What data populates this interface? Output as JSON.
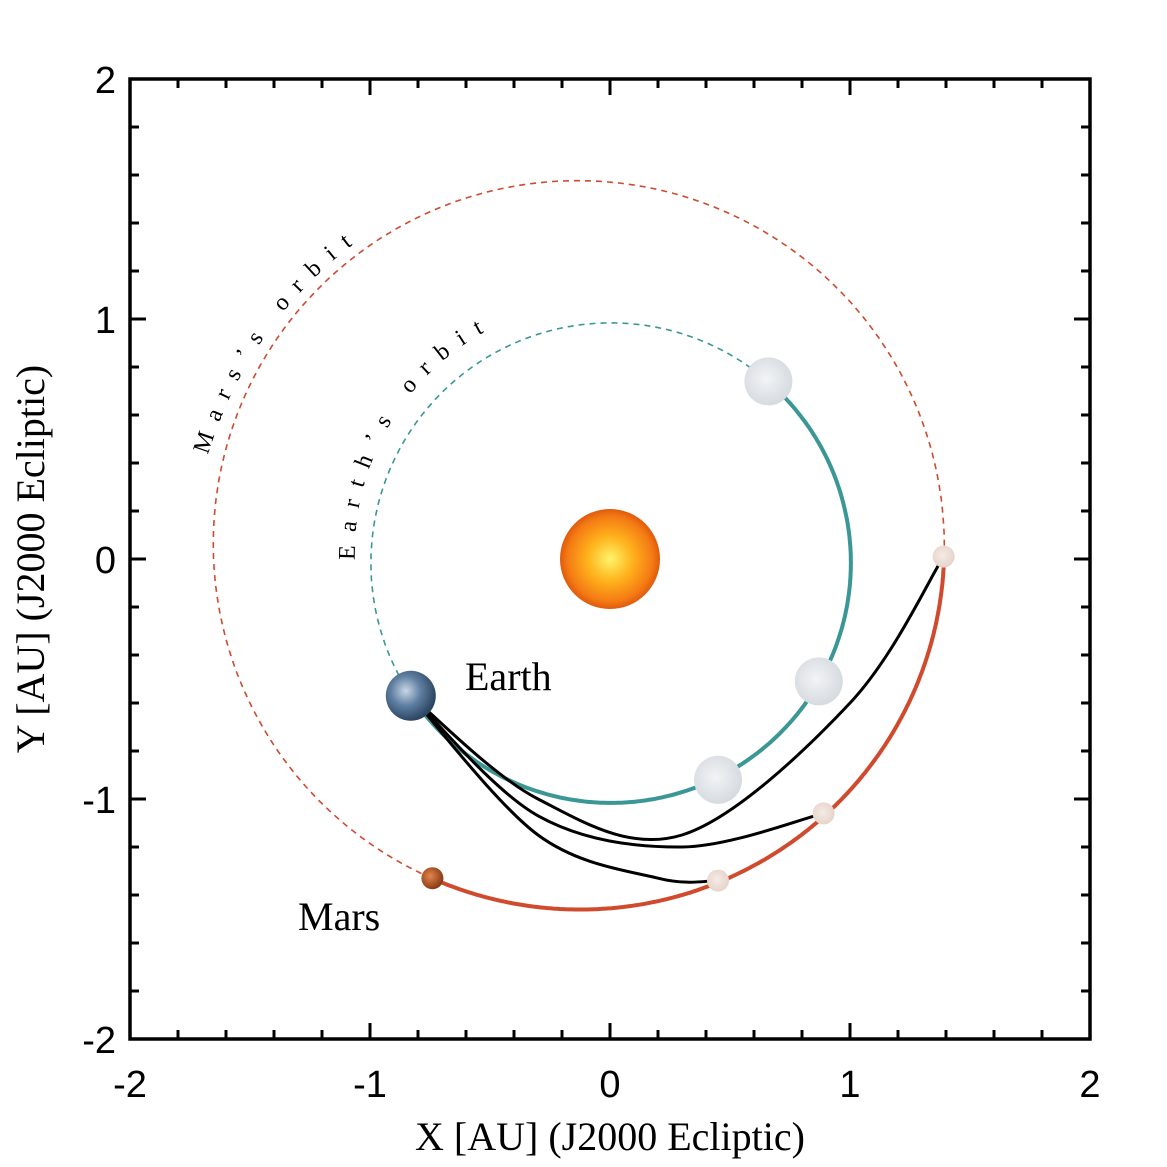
{
  "chart_data": {
    "type": "line",
    "xlabel": "X [AU] (J2000 Ecliptic)",
    "ylabel": "Y [AU] (J2000 Ecliptic)",
    "xlim": [
      -2,
      2
    ],
    "ylim": [
      -2,
      2
    ],
    "x_ticks": [
      "-2",
      "-1",
      "0",
      "1",
      "2"
    ],
    "y_ticks": [
      "2",
      "1",
      "0",
      "-1",
      "-2"
    ],
    "grid": false,
    "annotations": {
      "earth_label": "Earth",
      "mars_label": "Mars",
      "earth_orbit_label": "Earth’s orbit",
      "mars_orbit_label": "Mars’s orbit"
    },
    "sun": {
      "x": 0,
      "y": 0
    },
    "earth_orbit": {
      "a": 1.0,
      "e": 0.0167,
      "perihelion_deg": 102.9,
      "color": "#3a9795"
    },
    "mars_orbit": {
      "a": 1.524,
      "e": 0.0934,
      "perihelion_deg": 336.0,
      "color": "#d04a2e"
    },
    "earth_start": {
      "x": -0.83,
      "y": -0.57
    },
    "mars_start": {
      "x": -0.74,
      "y": -1.33
    },
    "earth_ghost_positions": [
      {
        "x": 0.66,
        "y": 0.74
      },
      {
        "x": 0.87,
        "y": -0.51
      },
      {
        "x": 0.45,
        "y": -0.92
      }
    ],
    "mars_arrival_positions": [
      {
        "x": 1.39,
        "y": 0.01
      },
      {
        "x": 0.89,
        "y": -1.06
      },
      {
        "x": 0.45,
        "y": -1.34
      }
    ],
    "transfers": [
      {
        "name": "",
        "points": [
          [
            -0.83,
            -0.57
          ],
          [
            -0.3,
            -1.0
          ],
          [
            0.3,
            -1.15
          ],
          [
            1.0,
            -0.6
          ],
          [
            1.39,
            0.01
          ]
        ]
      },
      {
        "name": "",
        "points": [
          [
            -0.83,
            -0.57
          ],
          [
            -0.3,
            -1.07
          ],
          [
            0.3,
            -1.2
          ],
          [
            0.89,
            -1.06
          ]
        ]
      },
      {
        "name": "",
        "points": [
          [
            -0.83,
            -0.57
          ],
          [
            -0.3,
            -1.15
          ],
          [
            0.2,
            -1.33
          ],
          [
            0.45,
            -1.34
          ]
        ]
      }
    ],
    "colors": {
      "transfer": "#000000",
      "sun_outer": "#f7941d",
      "sun_inner": "#fff200",
      "mars_body": "#b0552a",
      "earth_body": "#3b6b9a"
    }
  }
}
